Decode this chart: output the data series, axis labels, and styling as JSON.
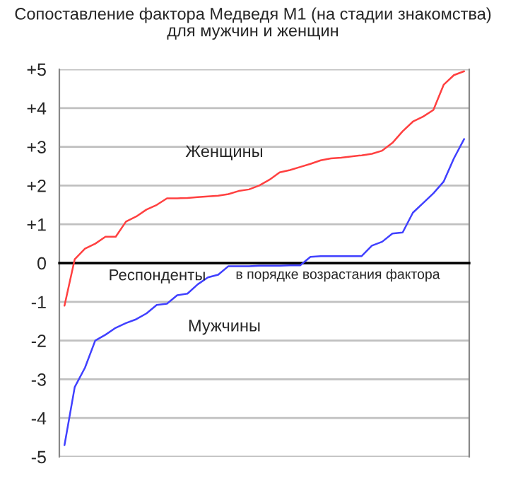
{
  "chart_data": {
    "type": "line",
    "title": "Сопоставление фактора Медведя М1 (на стадии знакомства)\nдля мужчин и женщин",
    "annotations": [
      "Респонденты",
      "в порядке возрастания фактора"
    ],
    "categories": [
      null,
      null,
      null,
      null,
      null,
      null,
      null,
      null,
      null,
      null,
      null,
      null,
      null,
      null,
      null,
      null,
      null,
      null,
      null,
      null,
      null,
      null,
      null,
      null,
      null,
      null,
      null,
      null,
      null,
      null,
      null,
      null,
      null,
      null,
      null,
      null,
      null,
      null,
      null,
      null
    ],
    "series": [
      {
        "name": "Женщины",
        "color": "#ff4040",
        "values": [
          -1.1,
          0.1,
          0.37,
          0.5,
          0.68,
          0.68,
          1.07,
          1.2,
          1.38,
          1.5,
          1.67,
          1.67,
          1.68,
          1.7,
          1.72,
          1.74,
          1.78,
          1.86,
          1.9,
          2.0,
          2.15,
          2.34,
          2.4,
          2.48,
          2.56,
          2.65,
          2.7,
          2.72,
          2.75,
          2.78,
          2.82,
          2.9,
          3.1,
          3.4,
          3.65,
          3.78,
          3.95,
          4.6,
          4.85,
          4.95
        ]
      },
      {
        "name": "Мужчины",
        "color": "#4040ff",
        "values": [
          -4.7,
          -3.2,
          -2.7,
          -2.0,
          -1.85,
          -1.67,
          -1.55,
          -1.45,
          -1.3,
          -1.08,
          -1.05,
          -0.83,
          -0.79,
          -0.55,
          -0.37,
          -0.3,
          -0.08,
          -0.08,
          -0.08,
          -0.07,
          -0.07,
          -0.07,
          -0.06,
          -0.06,
          0.16,
          0.18,
          0.18,
          0.18,
          0.18,
          0.18,
          0.45,
          0.55,
          0.76,
          0.79,
          1.3,
          1.55,
          1.8,
          2.1,
          2.7,
          3.2
        ]
      }
    ],
    "ylim": [
      -5,
      5
    ],
    "yticks": [
      {
        "value": 5,
        "label": "+5"
      },
      {
        "value": 4,
        "label": "+4"
      },
      {
        "value": 3,
        "label": "+3"
      },
      {
        "value": 2,
        "label": "+2"
      },
      {
        "value": 1,
        "label": "+1"
      },
      0,
      -1,
      -2,
      -3,
      -4,
      -5
    ],
    "tick_labels": "y",
    "grid": "y",
    "legend": false,
    "marker": "none",
    "line_style": "solid"
  }
}
